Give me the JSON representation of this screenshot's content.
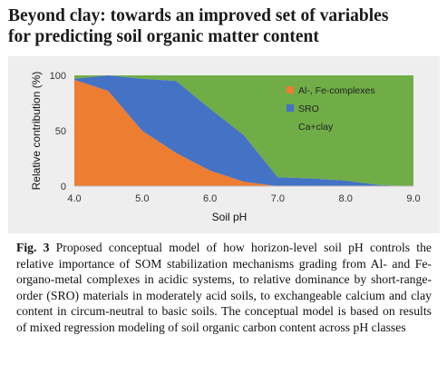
{
  "paper": {
    "title_line1": "Beyond clay: towards an improved set of variables",
    "title_line2": "for predicting soil organic matter content",
    "caption_label": "Fig. 3",
    "caption_text": "Proposed conceptual model of how horizon-level soil pH controls the relative importance of SOM stabilization mechanisms grading from Al- and Fe- organo-metal complexes in acidic systems, to relative dominance by short-range-order (SRO) materials in moderately acid soils, to exchangeable calcium and clay content in circum-neutral to basic soils. The conceptual model is based on results of mixed regression modeling of soil organic carbon content across pH classes"
  },
  "chart_data": {
    "type": "area",
    "stacked": true,
    "xlabel": "Soil pH",
    "ylabel": "Relative contribution (%)",
    "xlim": [
      4.0,
      9.0
    ],
    "ylim": [
      0,
      100
    ],
    "xticks": [
      "4.0",
      "5.0",
      "6.0",
      "7.0",
      "8.0",
      "9.0"
    ],
    "yticks": [
      "0",
      "50",
      "100"
    ],
    "legend_position": "top-right",
    "x": [
      4.0,
      4.5,
      5.0,
      5.5,
      6.0,
      6.5,
      7.0,
      7.5,
      8.0,
      8.5,
      9.0
    ],
    "series": [
      {
        "name": "Al-, Fe-complexes",
        "color": "#ed7d31",
        "values": [
          96,
          86,
          50,
          30,
          14,
          4,
          0,
          0,
          0,
          0,
          0
        ]
      },
      {
        "name": "SRO",
        "color": "#4472c4",
        "values": [
          1,
          14,
          47,
          65,
          56,
          42,
          8,
          7,
          5,
          1,
          0
        ]
      },
      {
        "name": "Ca+clay",
        "color": "#70ad47",
        "values": [
          3,
          0,
          3,
          5,
          30,
          54,
          92,
          93,
          95,
          99,
          100
        ]
      }
    ],
    "axis_color": "#bfbfbf",
    "grid": false
  }
}
